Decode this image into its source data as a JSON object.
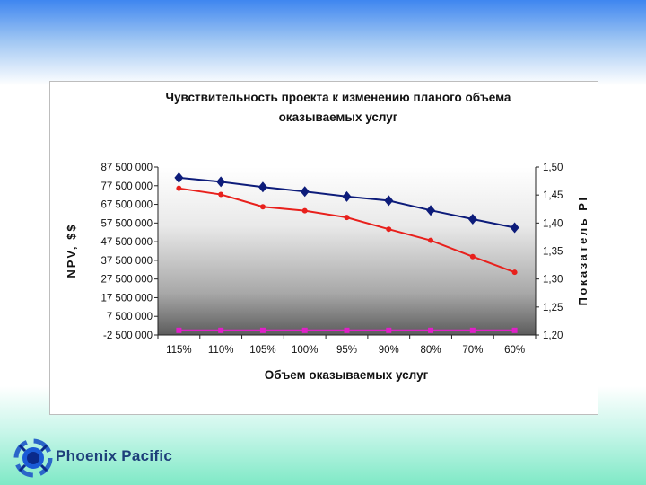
{
  "chart_data": {
    "type": "line",
    "title_line1": "Чувствительность проекта  к изменению планого объема",
    "title_line2": "оказываемых услуг",
    "xlabel": "Объем оказываемых услуг",
    "ylabel": "NPV, $$",
    "y2label": "Показатель PI",
    "categories": [
      "115%",
      "110%",
      "105%",
      "100%",
      "95%",
      "90%",
      "80%",
      "70%",
      "60%"
    ],
    "y_ticks": [
      "87 500 000",
      "77 500 000",
      "67 500 000",
      "57 500 000",
      "47 500 000",
      "37 500 000",
      "27 500 000",
      "17 500 000",
      "7 500 000",
      "-2 500 000"
    ],
    "y_tick_values": [
      87500000,
      77500000,
      67500000,
      57500000,
      47500000,
      37500000,
      27500000,
      17500000,
      7500000,
      -2500000
    ],
    "y2_ticks": [
      "1,50",
      "1,45",
      "1,40",
      "1,35",
      "1,30",
      "1,25",
      "1,20"
    ],
    "y2_tick_values": [
      1.5,
      1.45,
      1.4,
      1.35,
      1.3,
      1.25,
      1.2
    ],
    "ylim": [
      -2500000,
      87500000
    ],
    "y2lim": [
      1.2,
      1.5
    ],
    "series": [
      {
        "axis": "left",
        "color": "#0d1c7a",
        "marker": "diamond",
        "values": [
          81800000,
          79600000,
          76800000,
          74400000,
          71700000,
          69500000,
          64300000,
          59600000,
          55000000
        ]
      },
      {
        "axis": "right",
        "color": "#e8201c",
        "marker": "circle",
        "values": [
          1.462,
          1.451,
          1.429,
          1.422,
          1.41,
          1.389,
          1.369,
          1.34,
          1.312
        ]
      },
      {
        "axis": "left",
        "color": "#e020c8",
        "marker": "square",
        "values": [
          0,
          0,
          0,
          0,
          0,
          0,
          0,
          0,
          0
        ]
      }
    ],
    "colors": {
      "plot_bg_top": "#ffffff",
      "plot_bg_bottom": "#5a5a5a"
    }
  },
  "brand": {
    "name": "Phoenix Pacific",
    "color": "#1d3f7a"
  }
}
